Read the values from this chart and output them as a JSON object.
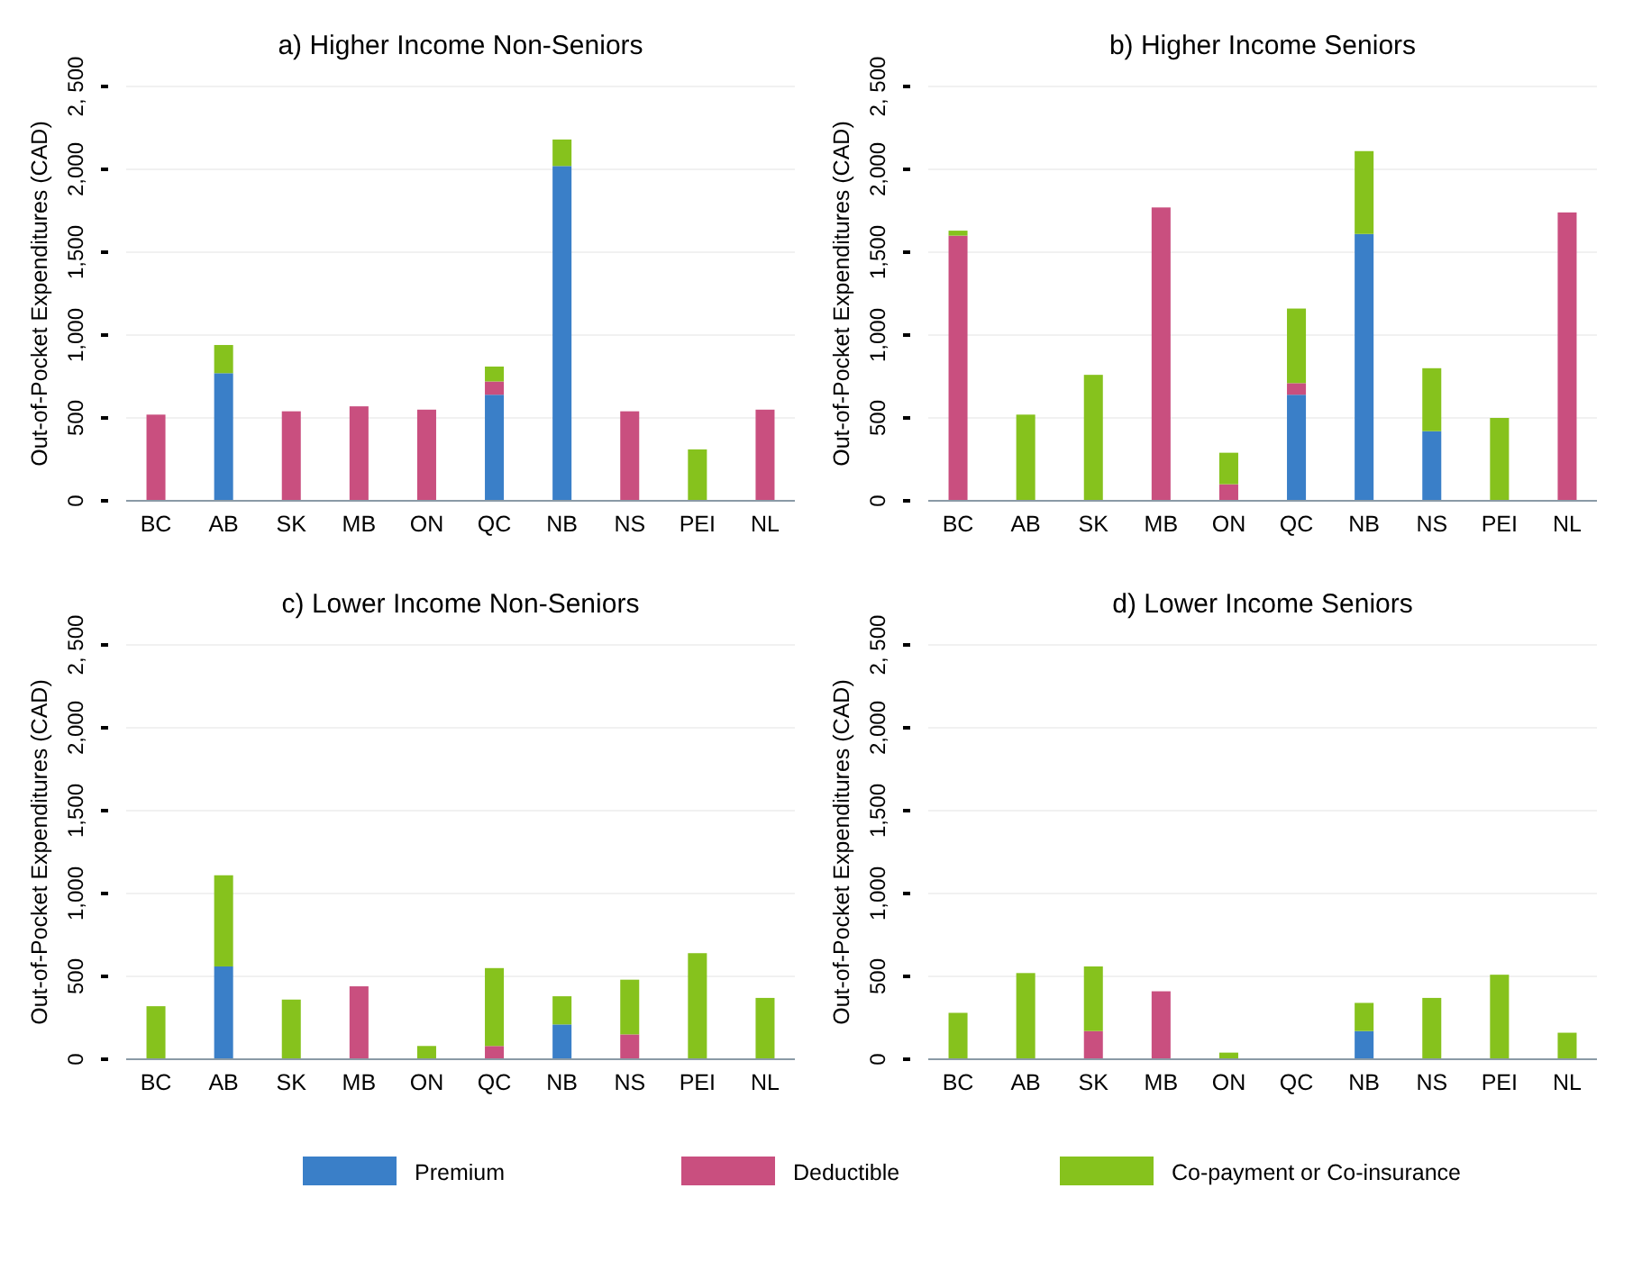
{
  "chart_data": [
    {
      "type": "bar",
      "stacked": true,
      "title": "a) Higher Income Non-Seniors",
      "ylabel": "Out-of-Pocket Expenditures (CAD)",
      "categories": [
        "BC",
        "AB",
        "SK",
        "MB",
        "ON",
        "QC",
        "NB",
        "NS",
        "PEI",
        "NL"
      ],
      "ylim": [
        0,
        2500
      ],
      "yticks": [
        {
          "value": 0,
          "label": "0"
        },
        {
          "value": 500,
          "label": "500"
        },
        {
          "value": 1000,
          "label": "1,000"
        },
        {
          "value": 1500,
          "label": "1,500"
        },
        {
          "value": 2000,
          "label": "2,000"
        },
        {
          "value": 2500,
          "label": "2, 500"
        }
      ],
      "grid": "y",
      "legend": "bottom",
      "series": [
        {
          "name": "Premium",
          "color": "#3a7fc8",
          "values": [
            0,
            770,
            0,
            0,
            0,
            640,
            2020,
            0,
            0,
            0
          ]
        },
        {
          "name": "Deductible",
          "color": "#c94f7f",
          "values": [
            520,
            0,
            540,
            570,
            550,
            80,
            0,
            540,
            0,
            550
          ]
        },
        {
          "name": "Co-payment or Co-insurance",
          "color": "#86c21d",
          "values": [
            0,
            170,
            0,
            0,
            0,
            90,
            160,
            0,
            310,
            0
          ]
        }
      ]
    },
    {
      "type": "bar",
      "stacked": true,
      "title": "b) Higher Income Seniors",
      "ylabel": "Out-of-Pocket Expenditures (CAD)",
      "categories": [
        "BC",
        "AB",
        "SK",
        "MB",
        "ON",
        "QC",
        "NB",
        "NS",
        "PEI",
        "NL"
      ],
      "ylim": [
        0,
        2500
      ],
      "yticks": [
        {
          "value": 0,
          "label": "0"
        },
        {
          "value": 500,
          "label": "500"
        },
        {
          "value": 1000,
          "label": "1,000"
        },
        {
          "value": 1500,
          "label": "1,500"
        },
        {
          "value": 2000,
          "label": "2,000"
        },
        {
          "value": 2500,
          "label": "2, 500"
        }
      ],
      "grid": "y",
      "series": [
        {
          "color": "#3a7fc8",
          "values": [
            0,
            0,
            0,
            0,
            0,
            640,
            1610,
            420,
            0,
            0
          ]
        },
        {
          "color": "#c94f7f",
          "values": [
            1600,
            0,
            0,
            1770,
            100,
            70,
            0,
            0,
            0,
            1740
          ]
        },
        {
          "color": "#86c21d",
          "values": [
            30,
            520,
            760,
            0,
            190,
            450,
            500,
            380,
            500,
            0
          ]
        }
      ]
    },
    {
      "type": "bar",
      "stacked": true,
      "title": "c) Lower Income Non-Seniors",
      "ylabel": "Out-of-Pocket Expenditures (CAD)",
      "categories": [
        "BC",
        "AB",
        "SK",
        "MB",
        "ON",
        "QC",
        "NB",
        "NS",
        "PEI",
        "NL"
      ],
      "ylim": [
        0,
        2500
      ],
      "yticks": [
        {
          "value": 0,
          "label": "0"
        },
        {
          "value": 500,
          "label": "500"
        },
        {
          "value": 1000,
          "label": "1,000"
        },
        {
          "value": 1500,
          "label": "1,500"
        },
        {
          "value": 2000,
          "label": "2,000"
        },
        {
          "value": 2500,
          "label": "2, 500"
        }
      ],
      "grid": "y",
      "series": [
        {
          "color": "#3a7fc8",
          "values": [
            0,
            560,
            0,
            0,
            0,
            0,
            210,
            0,
            0,
            0
          ]
        },
        {
          "color": "#c94f7f",
          "values": [
            0,
            0,
            0,
            440,
            0,
            80,
            0,
            150,
            0,
            0
          ]
        },
        {
          "color": "#86c21d",
          "values": [
            320,
            550,
            360,
            0,
            80,
            470,
            170,
            330,
            640,
            370
          ]
        }
      ]
    },
    {
      "type": "bar",
      "stacked": true,
      "title": "d) Lower Income Seniors",
      "ylabel": "Out-of-Pocket Expenditures (CAD)",
      "categories": [
        "BC",
        "AB",
        "SK",
        "MB",
        "ON",
        "QC",
        "NB",
        "NS",
        "PEI",
        "NL"
      ],
      "ylim": [
        0,
        2500
      ],
      "yticks": [
        {
          "value": 0,
          "label": "0"
        },
        {
          "value": 500,
          "label": "500"
        },
        {
          "value": 1000,
          "label": "1,000"
        },
        {
          "value": 1500,
          "label": "1,500"
        },
        {
          "value": 2000,
          "label": "2,000"
        },
        {
          "value": 2500,
          "label": "2, 500"
        }
      ],
      "grid": "y",
      "series": [
        {
          "color": "#3a7fc8",
          "values": [
            0,
            0,
            0,
            0,
            0,
            0,
            170,
            0,
            0,
            0
          ]
        },
        {
          "color": "#c94f7f",
          "values": [
            0,
            0,
            170,
            410,
            0,
            0,
            0,
            0,
            0,
            0
          ]
        },
        {
          "color": "#86c21d",
          "values": [
            280,
            520,
            390,
            0,
            40,
            0,
            170,
            370,
            510,
            160
          ]
        }
      ]
    }
  ]
}
